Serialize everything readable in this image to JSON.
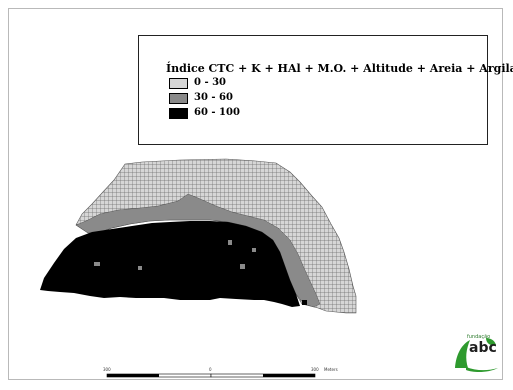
{
  "legend": {
    "title": "Índice CTC + K + HAl + M.O. + Altitude + Areia + Argila",
    "classes": [
      {
        "label": "0 - 30",
        "color": "#d6d6d6"
      },
      {
        "label": "30 - 60",
        "color": "#8a8a8a"
      },
      {
        "label": "60 - 100",
        "color": "#000000"
      }
    ]
  },
  "scale_bar": {
    "labels": [
      "300",
      "0",
      "300"
    ],
    "unit": "Meters"
  },
  "logo": {
    "small_text": "fundação",
    "text": "abc"
  },
  "colors": {
    "grid_line": "#6a6a6a",
    "light_class": "#d6d6d6",
    "medium_class": "#8a8a8a",
    "dark_class": "#000000",
    "logo_green": "#2e9a2e"
  }
}
